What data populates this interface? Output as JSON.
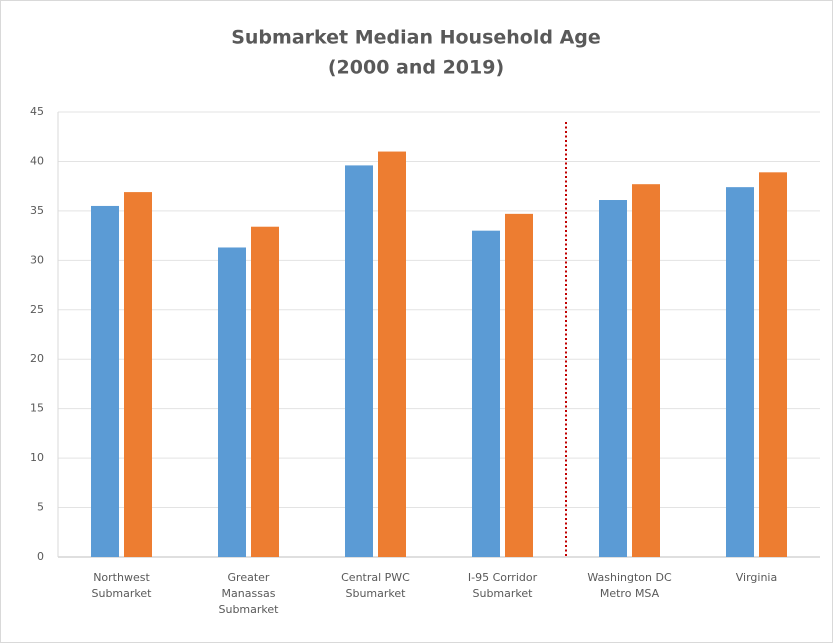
{
  "chart_data": {
    "type": "bar",
    "title": "Submarket Median Household Age",
    "subtitle": "(2000 and 2019)",
    "categories": [
      [
        "Northwest",
        "Submarket"
      ],
      [
        "Greater",
        "Manassas",
        "Submarket"
      ],
      [
        "Central PWC",
        "Sbumarket"
      ],
      [
        "I-95 Corridor",
        "Submarket"
      ],
      [
        "Washington DC",
        "Metro MSA"
      ],
      [
        "Virginia"
      ]
    ],
    "series": [
      {
        "color": "#5b9bd5",
        "values": [
          35.5,
          31.3,
          39.6,
          33.0,
          36.1,
          37.4
        ]
      },
      {
        "color": "#ed7d31",
        "values": [
          36.9,
          33.4,
          41.0,
          34.7,
          37.7,
          38.9
        ]
      }
    ],
    "ylim": [
      0,
      45
    ],
    "yticks": [
      0,
      5,
      10,
      15,
      20,
      25,
      30,
      35,
      40,
      45
    ],
    "grid": true
  }
}
